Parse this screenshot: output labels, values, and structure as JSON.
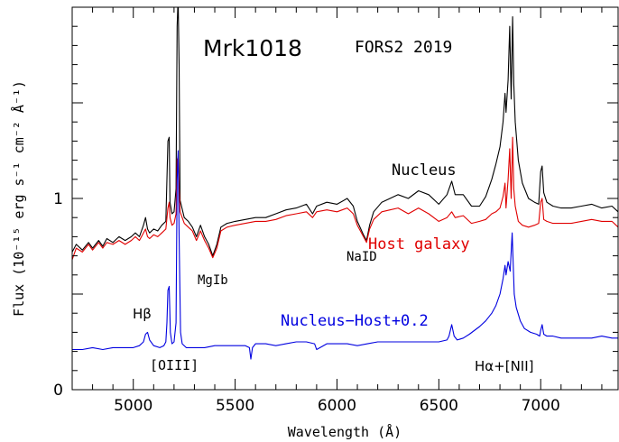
{
  "chart_data": {
    "type": "line",
    "title": "Mrk1018",
    "subtitle": "FORS2 2019",
    "xlabel": "Wavelength (Å)",
    "ylabel": "Flux (10⁻¹⁵ erg s⁻¹ cm⁻² Å⁻¹)",
    "xlim": [
      4700,
      7380
    ],
    "ylim": [
      0,
      2.0
    ],
    "x_ticks": [
      5000,
      5500,
      6000,
      6500,
      7000
    ],
    "y_ticks": [
      0,
      1
    ],
    "grid": false,
    "series": [
      {
        "name": "Nucleus",
        "color": "#000000",
        "x": [
          4700,
          4720,
          4750,
          4780,
          4800,
          4830,
          4850,
          4870,
          4900,
          4930,
          4960,
          4990,
          5010,
          5030,
          5050,
          5060,
          5070,
          5080,
          5100,
          5120,
          5140,
          5160,
          5170,
          5176,
          5180,
          5190,
          5200,
          5210,
          5215,
          5220,
          5225,
          5230,
          5250,
          5270,
          5290,
          5310,
          5330,
          5350,
          5370,
          5390,
          5410,
          5430,
          5460,
          5500,
          5550,
          5600,
          5650,
          5700,
          5750,
          5800,
          5850,
          5880,
          5900,
          5950,
          6000,
          6050,
          6080,
          6100,
          6130,
          6145,
          6160,
          6180,
          6220,
          6260,
          6300,
          6350,
          6400,
          6450,
          6500,
          6540,
          6563,
          6580,
          6620,
          6660,
          6700,
          6730,
          6760,
          6780,
          6800,
          6815,
          6825,
          6830,
          6840,
          6848,
          6855,
          6862,
          6868,
          6875,
          6890,
          6910,
          6940,
          6970,
          6990,
          7000,
          7007,
          7015,
          7030,
          7060,
          7100,
          7150,
          7200,
          7250,
          7300,
          7350,
          7380
        ],
        "values": [
          0.72,
          0.76,
          0.73,
          0.77,
          0.74,
          0.78,
          0.75,
          0.79,
          0.77,
          0.8,
          0.78,
          0.8,
          0.82,
          0.8,
          0.86,
          0.9,
          0.84,
          0.82,
          0.84,
          0.83,
          0.86,
          0.88,
          1.3,
          1.32,
          0.98,
          0.92,
          0.93,
          1.05,
          1.9,
          2.05,
          1.7,
          0.99,
          0.9,
          0.88,
          0.85,
          0.8,
          0.86,
          0.8,
          0.76,
          0.7,
          0.76,
          0.85,
          0.87,
          0.88,
          0.89,
          0.9,
          0.9,
          0.92,
          0.94,
          0.95,
          0.97,
          0.92,
          0.96,
          0.98,
          0.97,
          1.0,
          0.96,
          0.88,
          0.81,
          0.78,
          0.86,
          0.93,
          0.98,
          1.0,
          1.02,
          1.0,
          1.04,
          1.02,
          0.97,
          1.02,
          1.09,
          1.02,
          1.02,
          0.96,
          0.96,
          1.01,
          1.1,
          1.18,
          1.27,
          1.4,
          1.55,
          1.45,
          1.62,
          1.9,
          1.52,
          1.95,
          1.6,
          1.4,
          1.2,
          1.08,
          1.0,
          0.98,
          0.97,
          1.14,
          1.17,
          1.03,
          0.98,
          0.96,
          0.95,
          0.95,
          0.96,
          0.97,
          0.95,
          0.96,
          0.93
        ]
      },
      {
        "name": "Host galaxy",
        "color": "#e00000",
        "x": [
          4700,
          4720,
          4750,
          4780,
          4800,
          4830,
          4850,
          4870,
          4900,
          4930,
          4960,
          4990,
          5010,
          5030,
          5050,
          5060,
          5070,
          5080,
          5100,
          5120,
          5140,
          5160,
          5170,
          5176,
          5180,
          5190,
          5200,
          5210,
          5215,
          5220,
          5225,
          5230,
          5250,
          5270,
          5290,
          5310,
          5330,
          5350,
          5370,
          5390,
          5410,
          5430,
          5460,
          5500,
          5550,
          5600,
          5650,
          5700,
          5750,
          5800,
          5850,
          5880,
          5900,
          5950,
          6000,
          6050,
          6080,
          6100,
          6130,
          6145,
          6160,
          6180,
          6220,
          6260,
          6300,
          6350,
          6400,
          6450,
          6500,
          6540,
          6563,
          6580,
          6620,
          6660,
          6700,
          6730,
          6760,
          6780,
          6800,
          6815,
          6825,
          6830,
          6840,
          6848,
          6855,
          6862,
          6868,
          6875,
          6890,
          6910,
          6940,
          6970,
          6990,
          7000,
          7007,
          7015,
          7030,
          7060,
          7100,
          7150,
          7200,
          7250,
          7300,
          7350,
          7380
        ],
        "values": [
          0.68,
          0.74,
          0.72,
          0.76,
          0.73,
          0.77,
          0.74,
          0.77,
          0.76,
          0.78,
          0.76,
          0.78,
          0.8,
          0.78,
          0.82,
          0.84,
          0.8,
          0.79,
          0.81,
          0.8,
          0.82,
          0.84,
          0.95,
          0.98,
          0.9,
          0.86,
          0.87,
          0.92,
          1.2,
          1.22,
          1.05,
          0.93,
          0.87,
          0.85,
          0.83,
          0.78,
          0.83,
          0.78,
          0.74,
          0.69,
          0.74,
          0.83,
          0.85,
          0.86,
          0.87,
          0.88,
          0.88,
          0.89,
          0.91,
          0.92,
          0.93,
          0.9,
          0.93,
          0.94,
          0.93,
          0.95,
          0.92,
          0.86,
          0.8,
          0.77,
          0.84,
          0.89,
          0.93,
          0.94,
          0.95,
          0.92,
          0.95,
          0.92,
          0.88,
          0.9,
          0.93,
          0.9,
          0.91,
          0.87,
          0.88,
          0.89,
          0.92,
          0.93,
          0.95,
          1.01,
          1.08,
          0.95,
          1.1,
          1.26,
          1.0,
          1.32,
          1.05,
          0.96,
          0.88,
          0.86,
          0.85,
          0.86,
          0.87,
          0.98,
          1.0,
          0.89,
          0.88,
          0.87,
          0.87,
          0.87,
          0.88,
          0.89,
          0.88,
          0.88,
          0.85
        ]
      },
      {
        "name": "Nucleus−Host+0.2",
        "color": "#0000e0",
        "x": [
          4700,
          4750,
          4800,
          4850,
          4900,
          4950,
          5000,
          5030,
          5050,
          5060,
          5070,
          5080,
          5100,
          5130,
          5150,
          5160,
          5165,
          5170,
          5176,
          5182,
          5190,
          5200,
          5210,
          5215,
          5220,
          5225,
          5232,
          5240,
          5260,
          5300,
          5350,
          5400,
          5450,
          5500,
          5550,
          5570,
          5577,
          5585,
          5600,
          5650,
          5700,
          5750,
          5800,
          5850,
          5890,
          5900,
          5950,
          6000,
          6050,
          6100,
          6150,
          6200,
          6250,
          6300,
          6350,
          6400,
          6450,
          6500,
          6540,
          6550,
          6563,
          6575,
          6590,
          6620,
          6650,
          6700,
          6730,
          6760,
          6780,
          6800,
          6815,
          6825,
          6830,
          6840,
          6850,
          6860,
          6870,
          6880,
          6900,
          6920,
          6950,
          6980,
          6995,
          7000,
          7007,
          7015,
          7030,
          7060,
          7100,
          7150,
          7200,
          7250,
          7300,
          7350,
          7380
        ],
        "values": [
          0.21,
          0.21,
          0.22,
          0.21,
          0.22,
          0.22,
          0.22,
          0.23,
          0.25,
          0.29,
          0.3,
          0.26,
          0.23,
          0.22,
          0.23,
          0.25,
          0.35,
          0.52,
          0.54,
          0.3,
          0.24,
          0.25,
          0.35,
          1.1,
          1.25,
          0.8,
          0.3,
          0.24,
          0.22,
          0.22,
          0.22,
          0.23,
          0.23,
          0.23,
          0.23,
          0.22,
          0.16,
          0.22,
          0.24,
          0.24,
          0.23,
          0.24,
          0.25,
          0.25,
          0.24,
          0.21,
          0.24,
          0.24,
          0.24,
          0.23,
          0.24,
          0.25,
          0.25,
          0.25,
          0.25,
          0.25,
          0.25,
          0.25,
          0.26,
          0.28,
          0.34,
          0.28,
          0.26,
          0.27,
          0.29,
          0.33,
          0.36,
          0.4,
          0.44,
          0.5,
          0.58,
          0.65,
          0.6,
          0.67,
          0.62,
          0.82,
          0.5,
          0.43,
          0.36,
          0.32,
          0.3,
          0.29,
          0.28,
          0.31,
          0.34,
          0.29,
          0.28,
          0.28,
          0.27,
          0.27,
          0.27,
          0.27,
          0.28,
          0.27,
          0.27
        ]
      }
    ],
    "annotations": {
      "nucleus": "Nucleus",
      "host": "Host galaxy",
      "diff": "Nucleus−Host+0.2",
      "hbeta": "Hβ",
      "oiii": "[OIII]",
      "mgib": "MgIb",
      "naid": "NaID",
      "halpha": "Hα+[NII]"
    }
  }
}
